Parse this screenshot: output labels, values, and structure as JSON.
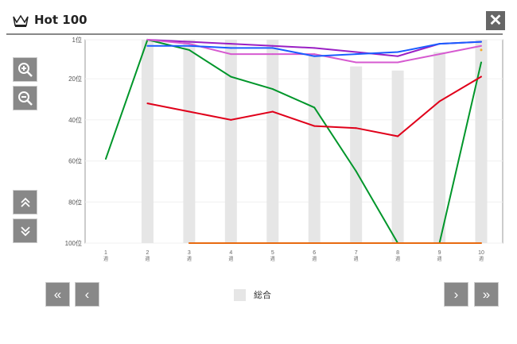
{
  "header": {
    "title": "Hot 100",
    "icon": "crown-icon",
    "close_icon": "close-icon"
  },
  "controls": {
    "zoom_in": "zoom-in-icon",
    "zoom_out": "zoom-out-icon",
    "scroll_up": "double-chevron-up-icon",
    "scroll_down": "double-chevron-down-icon",
    "first": "«",
    "prev": "‹",
    "next": "›",
    "last": "»"
  },
  "legend": {
    "label": "総合",
    "color": "#e6e6e6"
  },
  "chart_data": {
    "type": "line",
    "x": [
      "1",
      "2",
      "3",
      "4",
      "5",
      "6",
      "7",
      "8",
      "9",
      "10"
    ],
    "x_suffix": "週",
    "yticks": [
      "1位",
      "20位",
      "40位",
      "60位",
      "80位",
      "100位"
    ],
    "ylim": [
      1,
      100
    ],
    "y_inverted": true,
    "grid": true,
    "bars": {
      "name": "総合",
      "color": "#e6e6e6",
      "values": [
        null,
        1,
        1,
        1,
        1,
        8,
        14,
        16,
        7,
        1
      ]
    },
    "series": [
      {
        "color": "#00962a",
        "values": [
          59,
          1,
          6,
          19,
          25,
          34,
          65,
          100,
          100,
          12
        ]
      },
      {
        "color": "#e0001a",
        "values": [
          null,
          32,
          36,
          40,
          36,
          43,
          44,
          48,
          31,
          19
        ]
      },
      {
        "color": "#9a1fc4",
        "values": [
          null,
          1,
          2,
          3,
          4,
          5,
          7,
          9,
          3,
          2
        ]
      },
      {
        "color": "#d65ad0",
        "values": [
          null,
          1,
          3,
          8,
          8,
          8,
          12,
          12,
          8,
          4
        ]
      },
      {
        "color": "#1a5cff",
        "values": [
          null,
          4,
          4,
          5,
          5,
          9,
          8,
          7,
          3,
          2
        ]
      },
      {
        "color": "#e86a10",
        "values": [
          null,
          null,
          100,
          100,
          100,
          100,
          100,
          100,
          100,
          100
        ]
      },
      {
        "color": "#f5a623",
        "values": [
          null,
          null,
          null,
          null,
          null,
          null,
          null,
          null,
          null,
          6
        ]
      }
    ]
  }
}
